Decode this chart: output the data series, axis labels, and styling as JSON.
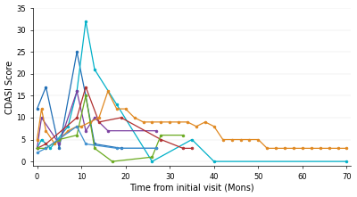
{
  "title": "",
  "xlabel": "Time from initial visit (Mons)",
  "ylabel": "CDASI Score",
  "xlim": [
    -1,
    71
  ],
  "ylim": [
    -1,
    35
  ],
  "xticks": [
    0,
    10,
    20,
    30,
    40,
    50,
    60,
    70
  ],
  "yticks": [
    0,
    5,
    10,
    15,
    20,
    25,
    30,
    35
  ],
  "background_color": "#ffffff",
  "series": [
    {
      "color": "#1f6eb5",
      "x": [
        0,
        2,
        5,
        9,
        11,
        13,
        19,
        27
      ],
      "y": [
        12,
        17,
        3,
        25,
        15,
        4,
        3,
        3
      ]
    },
    {
      "color": "#00b0c8",
      "x": [
        0,
        1,
        3,
        7,
        9,
        11,
        13,
        18,
        26,
        35,
        40,
        70
      ],
      "y": [
        3,
        5,
        3,
        8,
        16,
        32,
        21,
        13,
        0,
        5,
        0,
        0
      ]
    },
    {
      "color": "#7b3fa0",
      "x": [
        0,
        1,
        5,
        9,
        11,
        13,
        16,
        27
      ],
      "y": [
        3,
        10,
        4,
        16,
        7,
        10,
        7,
        7
      ]
    },
    {
      "color": "#b03030",
      "x": [
        0,
        2,
        9,
        11,
        14,
        19,
        28,
        33,
        35
      ],
      "y": [
        3,
        4,
        10,
        17,
        9,
        10,
        5,
        3,
        3
      ]
    },
    {
      "color": "#e08820",
      "x": [
        0,
        1,
        2,
        4,
        7,
        9,
        10,
        12,
        14,
        16,
        18,
        20,
        22,
        24,
        26,
        28,
        30,
        32,
        34,
        36,
        38,
        40,
        42,
        44,
        46,
        48,
        50,
        52,
        54,
        56,
        58,
        60,
        62,
        64,
        66,
        68,
        70
      ],
      "y": [
        5,
        12,
        7,
        4,
        7,
        8,
        8,
        9,
        10,
        16,
        12,
        12,
        10,
        9,
        9,
        9,
        9,
        9,
        9,
        8,
        9,
        8,
        5,
        5,
        5,
        5,
        5,
        3,
        3,
        3,
        3,
        3,
        3,
        3,
        3,
        3,
        3
      ]
    },
    {
      "color": "#6aaa20",
      "x": [
        0,
        2,
        5,
        9,
        11,
        13,
        17,
        26,
        28,
        33
      ],
      "y": [
        3,
        3,
        5,
        6,
        15,
        3,
        0,
        1,
        6,
        6
      ]
    },
    {
      "color": "#4090d0",
      "x": [
        0,
        2,
        9,
        11,
        18,
        27
      ],
      "y": [
        2,
        3,
        8,
        4,
        3,
        3
      ]
    }
  ]
}
